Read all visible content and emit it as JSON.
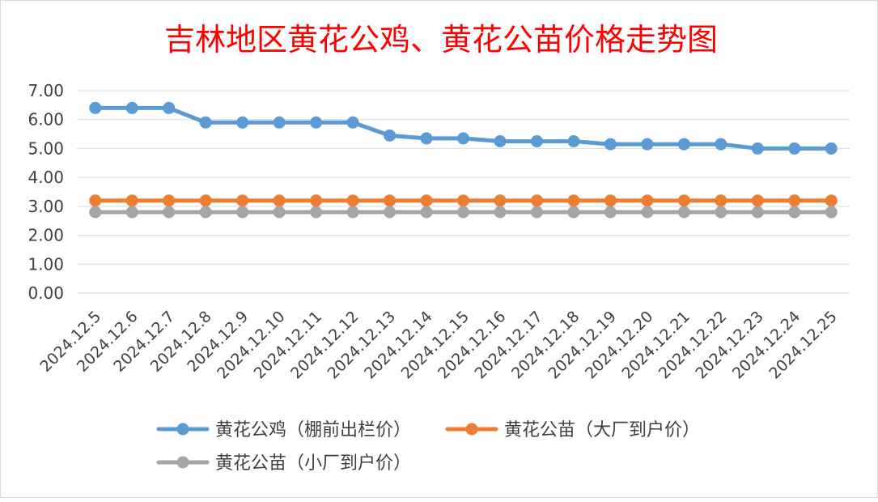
{
  "chart_data": {
    "type": "line",
    "title": "吉林地区黄花公鸡、黄花公苗价格走势图",
    "xlabel": "",
    "ylabel": "",
    "categories": [
      "2024.12.5",
      "2024.12.6",
      "2024.12.7",
      "2024.12.8",
      "2024.12.9",
      "2024.12.10",
      "2024.12.11",
      "2024.12.12",
      "2024.12.13",
      "2024.12.14",
      "2024.12.15",
      "2024.12.16",
      "2024.12.17",
      "2024.12.18",
      "2024.12.19",
      "2024.12.20",
      "2024.12.21",
      "2024.12.22",
      "2024.12.23",
      "2024.12.24",
      "2024.12.25"
    ],
    "ylim": [
      0,
      7
    ],
    "yticks": [
      "0.00",
      "1.00",
      "2.00",
      "3.00",
      "4.00",
      "5.00",
      "6.00",
      "7.00"
    ],
    "grid": true,
    "legend_position": "bottom",
    "series": [
      {
        "name": "黄花公鸡（棚前出栏价）",
        "color": "#5b9bd5",
        "values": [
          6.4,
          6.4,
          6.4,
          5.9,
          5.9,
          5.9,
          5.9,
          5.9,
          5.45,
          5.35,
          5.35,
          5.25,
          5.25,
          5.25,
          5.15,
          5.15,
          5.15,
          5.15,
          5.0,
          5.0,
          5.0
        ]
      },
      {
        "name": "黄花公苗（大厂到户价）",
        "color": "#ed7d31",
        "values": [
          3.2,
          3.2,
          3.2,
          3.2,
          3.2,
          3.2,
          3.2,
          3.2,
          3.2,
          3.2,
          3.2,
          3.2,
          3.2,
          3.2,
          3.2,
          3.2,
          3.2,
          3.2,
          3.2,
          3.2,
          3.2
        ]
      },
      {
        "name": "黄花公苗（小厂到户价）",
        "color": "#a5a5a5",
        "values": [
          2.8,
          2.8,
          2.8,
          2.8,
          2.8,
          2.8,
          2.8,
          2.8,
          2.8,
          2.8,
          2.8,
          2.8,
          2.8,
          2.8,
          2.8,
          2.8,
          2.8,
          2.8,
          2.8,
          2.8,
          2.8
        ]
      }
    ]
  },
  "colors": {
    "title": "#ff0000",
    "gridline": "#d9d9d9",
    "axis_text": "#404040"
  }
}
